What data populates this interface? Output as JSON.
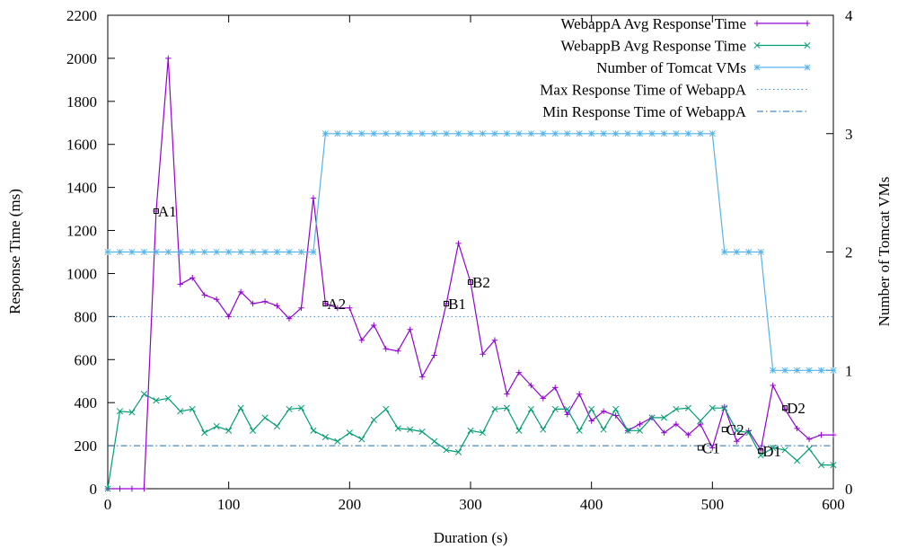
{
  "chart_data": {
    "type": "line",
    "xlabel": "Duration (s)",
    "ylabel": "Response Time (ms)",
    "y2label": "Number of Tomcat VMs",
    "xlim": [
      0,
      600
    ],
    "ylim": [
      0,
      2200
    ],
    "y2lim": [
      0,
      4
    ],
    "xticks": [
      "0",
      "100",
      "200",
      "300",
      "400",
      "500",
      "600"
    ],
    "yticks": [
      "0",
      "200",
      "400",
      "600",
      "800",
      "1000",
      "1200",
      "1400",
      "1600",
      "1800",
      "2000",
      "2200"
    ],
    "y2ticks": [
      "0",
      "1",
      "2",
      "3",
      "4"
    ],
    "grid": false,
    "legend_position": "top-right",
    "colors": {
      "webappA": "#9400d3",
      "webappB": "#009e73",
      "vms": "#56b4e9",
      "maxLine": "#3a8fd6",
      "minLine": "#1a6fb0"
    },
    "series": [
      {
        "name": "WebappA Avg Response Time",
        "axis": "left",
        "marker": "plus",
        "color_key": "webappA",
        "x": [
          0,
          10,
          20,
          30,
          40,
          50,
          60,
          70,
          80,
          90,
          100,
          110,
          120,
          130,
          140,
          150,
          160,
          170,
          180,
          190,
          200,
          210,
          220,
          230,
          240,
          250,
          260,
          270,
          280,
          290,
          300,
          310,
          320,
          330,
          340,
          350,
          360,
          370,
          380,
          390,
          400,
          410,
          420,
          430,
          440,
          450,
          460,
          470,
          480,
          490,
          500,
          510,
          520,
          530,
          540,
          550,
          560,
          570,
          580,
          590,
          600
        ],
        "y": [
          0,
          0,
          0,
          0,
          1290,
          2000,
          950,
          980,
          900,
          880,
          800,
          915,
          860,
          870,
          850,
          790,
          840,
          1350,
          860,
          840,
          840,
          690,
          760,
          650,
          640,
          740,
          520,
          620,
          860,
          1140,
          960,
          625,
          690,
          440,
          540,
          480,
          420,
          470,
          345,
          440,
          315,
          360,
          340,
          270,
          300,
          330,
          260,
          300,
          250,
          300,
          190,
          380,
          220,
          270,
          180,
          480,
          370,
          280,
          230,
          250,
          250
        ]
      },
      {
        "name": "WebappB Avg Response Time",
        "axis": "left",
        "marker": "x",
        "color_key": "webappB",
        "x": [
          0,
          10,
          20,
          30,
          40,
          50,
          60,
          70,
          80,
          90,
          100,
          110,
          120,
          130,
          140,
          150,
          160,
          170,
          180,
          190,
          200,
          210,
          220,
          230,
          240,
          250,
          260,
          270,
          280,
          290,
          300,
          310,
          320,
          330,
          340,
          350,
          360,
          370,
          380,
          390,
          400,
          410,
          420,
          430,
          440,
          450,
          460,
          470,
          480,
          490,
          500,
          510,
          520,
          530,
          540,
          550,
          560,
          570,
          580,
          590,
          600
        ],
        "y": [
          0,
          360,
          355,
          440,
          410,
          420,
          360,
          370,
          260,
          290,
          270,
          375,
          270,
          330,
          290,
          370,
          375,
          270,
          240,
          220,
          260,
          230,
          320,
          370,
          280,
          275,
          265,
          220,
          180,
          170,
          270,
          260,
          370,
          375,
          270,
          370,
          275,
          370,
          370,
          270,
          370,
          275,
          370,
          270,
          270,
          330,
          330,
          370,
          375,
          315,
          375,
          375,
          270,
          260,
          155,
          190,
          180,
          130,
          185,
          110,
          110
        ]
      },
      {
        "name": "Number of Tomcat VMs",
        "axis": "right",
        "marker": "star",
        "color_key": "vms",
        "x": [
          0,
          10,
          20,
          30,
          40,
          50,
          60,
          70,
          80,
          90,
          100,
          110,
          120,
          130,
          140,
          150,
          160,
          170,
          180,
          190,
          200,
          210,
          220,
          230,
          240,
          250,
          260,
          270,
          280,
          290,
          300,
          310,
          320,
          330,
          340,
          350,
          360,
          370,
          380,
          390,
          400,
          410,
          420,
          430,
          440,
          450,
          460,
          470,
          480,
          490,
          500,
          510,
          520,
          530,
          540,
          550,
          560,
          570,
          580,
          590,
          600
        ],
        "y": [
          2,
          2,
          2,
          2,
          2,
          2,
          2,
          2,
          2,
          2,
          2,
          2,
          2,
          2,
          2,
          2,
          2,
          2,
          3,
          3,
          3,
          3,
          3,
          3,
          3,
          3,
          3,
          3,
          3,
          3,
          3,
          3,
          3,
          3,
          3,
          3,
          3,
          3,
          3,
          3,
          3,
          3,
          3,
          3,
          3,
          3,
          3,
          3,
          3,
          3,
          3,
          2,
          2,
          2,
          2,
          1,
          1,
          1,
          1,
          1,
          1
        ]
      },
      {
        "name": "Max Response Time of WebappA",
        "axis": "left",
        "style": "dotted",
        "color_key": "maxLine",
        "y": 800
      },
      {
        "name": "Min Response Time of WebappA",
        "axis": "left",
        "style": "dashdot",
        "color_key": "minLine",
        "y": 200
      }
    ],
    "annotations": [
      {
        "text": "A1",
        "x": 40,
        "y": 1290
      },
      {
        "text": "A2",
        "x": 180,
        "y": 860
      },
      {
        "text": "B1",
        "x": 280,
        "y": 860
      },
      {
        "text": "B2",
        "x": 300,
        "y": 960
      },
      {
        "text": "C1",
        "x": 490,
        "y": 190
      },
      {
        "text": "C2",
        "x": 510,
        "y": 275
      },
      {
        "text": "D1",
        "x": 540,
        "y": 175
      },
      {
        "text": "D2",
        "x": 560,
        "y": 375
      }
    ]
  }
}
